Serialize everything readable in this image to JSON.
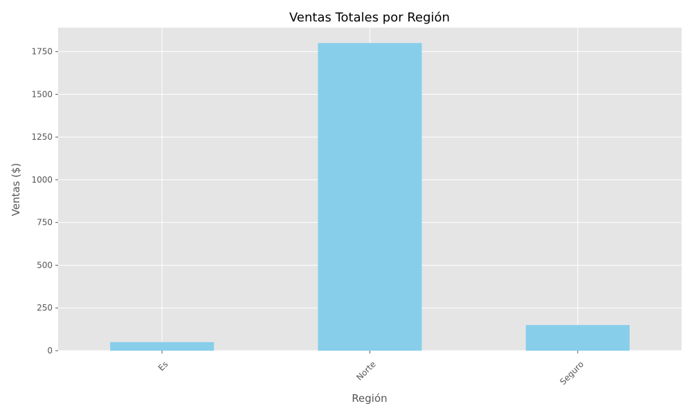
{
  "chart_data": {
    "type": "bar",
    "title": "Ventas Totales por Región",
    "xlabel": "Región",
    "ylabel": "Ventas ($)",
    "categories": [
      "Es",
      "Norte",
      "Seguro"
    ],
    "values": [
      50,
      1800,
      150
    ],
    "ylim": [
      0,
      1890
    ],
    "yticks": [
      0,
      250,
      500,
      750,
      1000,
      1250,
      1500,
      1750
    ],
    "grid": true,
    "legend": "none",
    "colors": {
      "bar": "#87CEEB",
      "plot_background": "#E5E5E5",
      "grid": "#FFFFFF",
      "text": "#555555"
    }
  }
}
